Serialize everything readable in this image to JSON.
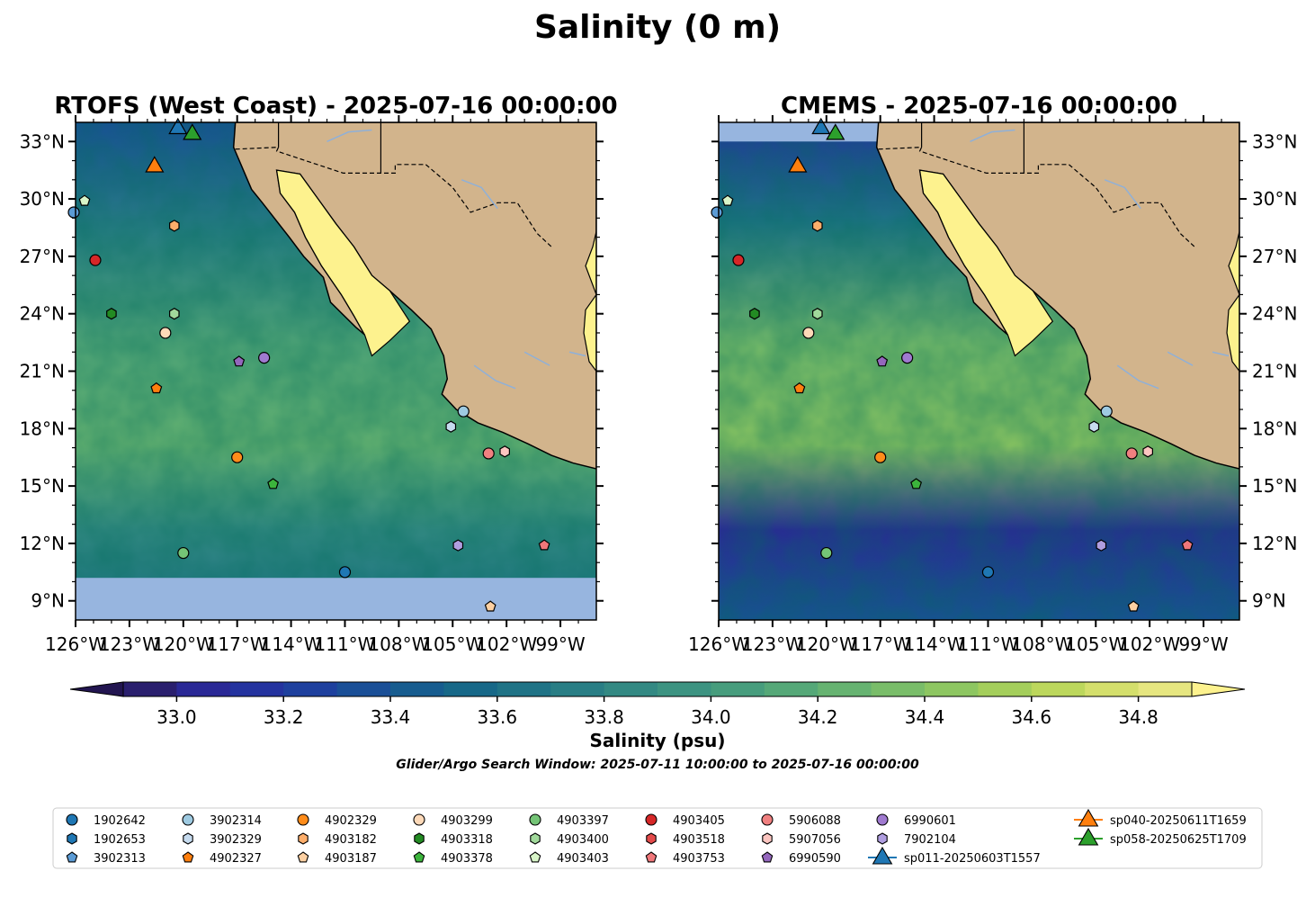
{
  "figure": {
    "title": "Salinity (0 m)",
    "subtitle": "Glider/Argo Search Window: 2025-07-11 10:00:00 to 2025-07-16 00:00:00"
  },
  "panels": [
    {
      "id": "rtofs",
      "title": "RTOFS (West Coast) - 2025-07-16 00:00:00",
      "lat_labels_side": "left",
      "no_data_below_lat": 10.2,
      "no_data_above_lat": null
    },
    {
      "id": "cmems",
      "title": "CMEMS - 2025-07-16 00:00:00",
      "lat_labels_side": "right",
      "no_data_below_lat": null,
      "no_data_above_lat": 33.0
    }
  ],
  "map": {
    "lon_range": [
      -126,
      -97
    ],
    "lat_range": [
      8,
      34
    ],
    "lon_ticks": [
      {
        "value": -126,
        "label": "126°W"
      },
      {
        "value": -123,
        "label": "123°W"
      },
      {
        "value": -120,
        "label": "120°W"
      },
      {
        "value": -117,
        "label": "117°W"
      },
      {
        "value": -114,
        "label": "114°W"
      },
      {
        "value": -111,
        "label": "111°W"
      },
      {
        "value": -108,
        "label": "108°W"
      },
      {
        "value": -105,
        "label": "105°W"
      },
      {
        "value": -102,
        "label": "102°W"
      },
      {
        "value": -99,
        "label": "99°W"
      }
    ],
    "lat_ticks": [
      {
        "value": 9,
        "label": "9°N"
      },
      {
        "value": 12,
        "label": "12°N"
      },
      {
        "value": 15,
        "label": "15°N"
      },
      {
        "value": 18,
        "label": "18°N"
      },
      {
        "value": 21,
        "label": "21°N"
      },
      {
        "value": 24,
        "label": "24°N"
      },
      {
        "value": 27,
        "label": "27°N"
      },
      {
        "value": 30,
        "label": "30°N"
      },
      {
        "value": 33,
        "label": "33°N"
      }
    ],
    "land_color": "#d2b48c",
    "no_data_color": "#97b5df"
  },
  "colorbar": {
    "label": "Salinity (psu)",
    "min": 32.9,
    "max": 34.9,
    "step": 0.1,
    "extend": "both",
    "ticks": [
      {
        "value": 33.0,
        "label": "33.0"
      },
      {
        "value": 33.2,
        "label": "33.2"
      },
      {
        "value": 33.4,
        "label": "33.4"
      },
      {
        "value": 33.6,
        "label": "33.6"
      },
      {
        "value": 33.8,
        "label": "33.8"
      },
      {
        "value": 34.0,
        "label": "34.0"
      },
      {
        "value": 34.2,
        "label": "34.2"
      },
      {
        "value": 34.4,
        "label": "34.4"
      },
      {
        "value": 34.6,
        "label": "34.6"
      },
      {
        "value": 34.8,
        "label": "34.8"
      }
    ],
    "under_color": "#221550",
    "over_color": "#fdf28e",
    "colors": [
      "#2a1f6e",
      "#2a2896",
      "#24339f",
      "#1e409e",
      "#1a4f97",
      "#175c8f",
      "#176888",
      "#1f7386",
      "#297e85",
      "#338983",
      "#3c9381",
      "#479d7d",
      "#55a878",
      "#66b371",
      "#79bd69",
      "#8dc661",
      "#a4ce5b",
      "#bcd75c",
      "#d4df6c",
      "#e6e680"
    ]
  },
  "stations": [
    {
      "id": "1902642",
      "marker": "circle",
      "color": "#1f77b4",
      "lon": null,
      "lat": null
    },
    {
      "id": "1902653",
      "marker": "hexagon",
      "color": "#1f77b4",
      "lon": null,
      "lat": null
    },
    {
      "id": "3902313",
      "marker": "pentagon",
      "color": "#5b9bd5",
      "lon": null,
      "lat": null
    },
    {
      "id": "3902314",
      "marker": "circle",
      "color": "#9ecae1",
      "lon": -104.4,
      "lat": 18.9
    },
    {
      "id": "3902329",
      "marker": "hexagon",
      "color": "#c6dbef",
      "lon": -105.1,
      "lat": 18.1
    },
    {
      "id": "4902327",
      "marker": "pentagon",
      "color": "#ff7f0e",
      "lon": -121.5,
      "lat": 20.1
    },
    {
      "id": "4902329",
      "marker": "circle",
      "color": "#ff8c1a",
      "lon": -117.0,
      "lat": 16.5
    },
    {
      "id": "4903182",
      "marker": "hexagon",
      "color": "#fdae6b",
      "lon": -120.5,
      "lat": 28.6
    },
    {
      "id": "4903187",
      "marker": "pentagon",
      "color": "#fdd0a2",
      "lon": -102.9,
      "lat": 8.7
    },
    {
      "id": "4903299",
      "marker": "circle",
      "color": "#fdd9b8",
      "lon": -121.0,
      "lat": 23.0
    },
    {
      "id": "4903318",
      "marker": "hexagon",
      "color": "#238b23",
      "lon": -124.0,
      "lat": 24.0
    },
    {
      "id": "4903378",
      "marker": "pentagon",
      "color": "#3cb43c",
      "lon": -115.0,
      "lat": 15.1
    },
    {
      "id": "4903397",
      "marker": "circle",
      "color": "#74c476",
      "lon": -120.0,
      "lat": 11.5
    },
    {
      "id": "4903400",
      "marker": "hexagon",
      "color": "#a1d99b",
      "lon": -120.5,
      "lat": 24.0
    },
    {
      "id": "4903403",
      "marker": "pentagon",
      "color": "#d8f5c8",
      "lon": -125.5,
      "lat": 29.9
    },
    {
      "id": "4903405",
      "marker": "circle",
      "color": "#d62728",
      "lon": -124.9,
      "lat": 26.8
    },
    {
      "id": "4903518",
      "marker": "hexagon",
      "color": "#e34a4a",
      "lon": null,
      "lat": null
    },
    {
      "id": "4903753",
      "marker": "pentagon",
      "color": "#f0777a",
      "lon": -99.9,
      "lat": 11.9
    },
    {
      "id": "5906088",
      "marker": "circle",
      "color": "#f08080",
      "lon": -103.0,
      "lat": 16.7
    },
    {
      "id": "5907056",
      "marker": "hexagon",
      "color": "#fcc5c0",
      "lon": -102.1,
      "lat": 16.8
    },
    {
      "id": "6990590",
      "marker": "pentagon",
      "color": "#9467bd",
      "lon": -116.9,
      "lat": 21.5
    },
    {
      "id": "6990601",
      "marker": "circle",
      "color": "#a07ad0",
      "lon": -115.5,
      "lat": 21.7
    },
    {
      "id": "7902104",
      "marker": "hexagon",
      "color": "#b09ee0",
      "lon": -104.7,
      "lat": 11.9
    },
    {
      "id": "sp011-20250603T1557",
      "marker": "triangle",
      "color": "#1f77b4",
      "lon": -120.3,
      "lat": 33.8
    },
    {
      "id": "sp040-20250611T1659",
      "marker": "triangle",
      "color": "#ff7f0e",
      "lon": -121.6,
      "lat": 31.8
    },
    {
      "id": "sp058-20250625T1709",
      "marker": "triangle",
      "color": "#2ca02c",
      "lon": -119.5,
      "lat": 33.5
    }
  ],
  "extra_points": [
    {
      "marker": "circle",
      "color": "#5b9bd5",
      "lon": -126.1,
      "lat": 29.3
    },
    {
      "marker": "circle",
      "color": "#1f77b4",
      "lon": -111.0,
      "lat": 10.5
    }
  ],
  "icons": {
    "land": "land-polygon",
    "lake": "gulf-of-california",
    "border": "dashed-state-border"
  }
}
